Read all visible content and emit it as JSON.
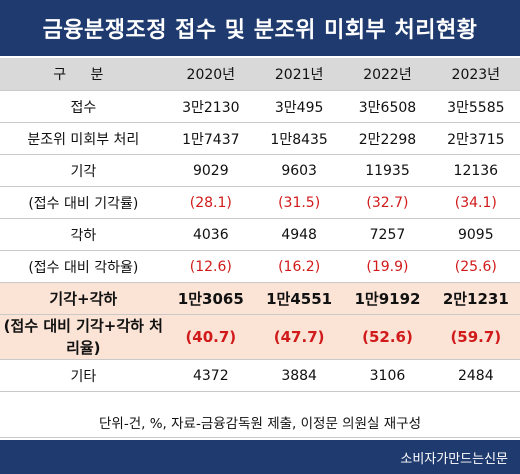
{
  "title": "금융분쟁조정 접수 및 분조위 미회부 처리현황",
  "colors": {
    "header_bar": "#1f3a6e",
    "column_header": "#d9d9d9",
    "highlight_row": "#fbe3d6",
    "negative_text": "#d11a1a"
  },
  "chart_data": {
    "type": "table",
    "columns": [
      "구 분",
      "2020년",
      "2021년",
      "2022년",
      "2023년"
    ],
    "rows": [
      {
        "label": "접수",
        "values": [
          "3만2130",
          "3만495",
          "3만6508",
          "3만5585"
        ]
      },
      {
        "label": "분조위 미회부 처리",
        "values": [
          "1만7437",
          "1만8435",
          "2만2298",
          "2만3715"
        ]
      },
      {
        "label": "기각",
        "values": [
          "9029",
          "9603",
          "11935",
          "12136"
        ]
      },
      {
        "label": "(접수 대비 기각률)",
        "values": [
          "(28.1)",
          "(31.5)",
          "(32.7)",
          "(34.1)"
        ]
      },
      {
        "label": "각하",
        "values": [
          "4036",
          "4948",
          "7257",
          "9095"
        ]
      },
      {
        "label": "(접수 대비 각하율)",
        "values": [
          "(12.6)",
          "(16.2)",
          "(19.9)",
          "(25.6)"
        ]
      },
      {
        "label": "기각+각하",
        "values": [
          "1만3065",
          "1만4551",
          "1만9192",
          "2만1231"
        ]
      },
      {
        "label": "(접수 대비 기각+각하 처리율)",
        "values": [
          "(40.7)",
          "(47.7)",
          "(52.6)",
          "(59.7)"
        ]
      },
      {
        "label": "기타",
        "values": [
          "4372",
          "3884",
          "3106",
          "2484"
        ]
      }
    ],
    "note": "단위-건, %, 자료-금융감독원 제출, 이정문 의원실 재구성"
  },
  "footer": "소비자가만드는신문"
}
